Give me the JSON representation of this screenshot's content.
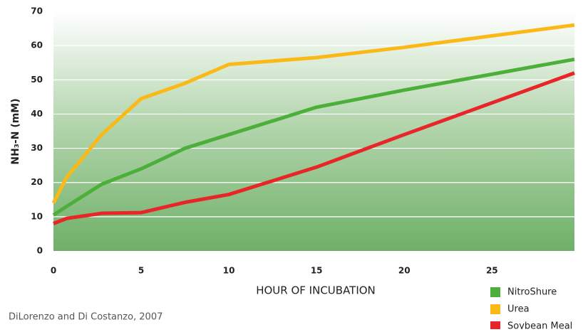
{
  "chart_data": {
    "type": "line",
    "x_label": "HOUR OF INCUBATION",
    "y_label": "NH₃-N (mM)",
    "source": "DiLorenzo and Di Costanzo, 2007",
    "x": [
      0,
      0.75,
      2.75,
      5,
      7.5,
      10,
      15,
      20,
      29.7
    ],
    "series": [
      {
        "name": "NitroShure",
        "color": "#4caf3a",
        "values": [
          10.5,
          13,
          19.5,
          24,
          30,
          34,
          42,
          47,
          56
        ]
      },
      {
        "name": "Urea",
        "color": "#fbb917",
        "values": [
          14,
          21.5,
          34,
          44.5,
          49,
          54.5,
          56.5,
          59.5,
          66
        ]
      },
      {
        "name": "Soybean Meal",
        "color": "#e8262a",
        "values": [
          8,
          9.5,
          11,
          11.2,
          14.2,
          16.5,
          24.5,
          34,
          52
        ]
      }
    ],
    "xlim": [
      0,
      29.7
    ],
    "xticks": [
      0,
      5,
      10,
      15,
      20,
      25
    ],
    "ylim": [
      0,
      70
    ],
    "yticks": [
      0,
      10,
      20,
      30,
      40,
      50,
      60,
      70
    ],
    "grid": true
  }
}
